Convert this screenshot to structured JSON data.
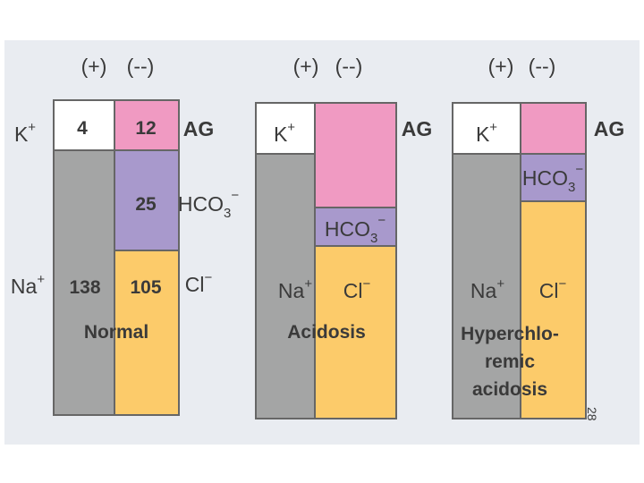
{
  "panels": [
    {
      "headers": [
        "(+)",
        "(--)"
      ],
      "k": {
        "base": "K",
        "sup": "+"
      },
      "ag": "AG",
      "hco3": {
        "base": "HCO",
        "sub": "3",
        "sup": "−"
      },
      "na": {
        "base": "Na",
        "sup": "+"
      },
      "cl": {
        "base": "Cl",
        "sup": "−"
      },
      "values": {
        "k": "4",
        "ag": "12",
        "hco3": "25",
        "na": "138",
        "cl": "105"
      },
      "name": [
        "Normal"
      ]
    },
    {
      "headers": [
        "(+)",
        "(--)"
      ],
      "k": {
        "base": "K",
        "sup": "+"
      },
      "ag": "AG",
      "hco3": {
        "base": "HCO",
        "sub": "3",
        "sup": "−"
      },
      "na": {
        "base": "Na",
        "sup": "+"
      },
      "cl": {
        "base": "Cl",
        "sup": "−"
      },
      "name": [
        "Acidosis"
      ]
    },
    {
      "headers": [
        "(+)",
        "(--)"
      ],
      "k": {
        "base": "K",
        "sup": "+"
      },
      "ag": "AG",
      "hco3": {
        "base": "HCO",
        "sub": "3",
        "sup": "−"
      },
      "na": {
        "base": "Na",
        "sup": "+"
      },
      "cl": {
        "base": "Cl",
        "sup": "−"
      },
      "name": [
        "Hyperchlo-",
        "remic",
        "acidosis"
      ]
    }
  ],
  "slide_number": "28"
}
